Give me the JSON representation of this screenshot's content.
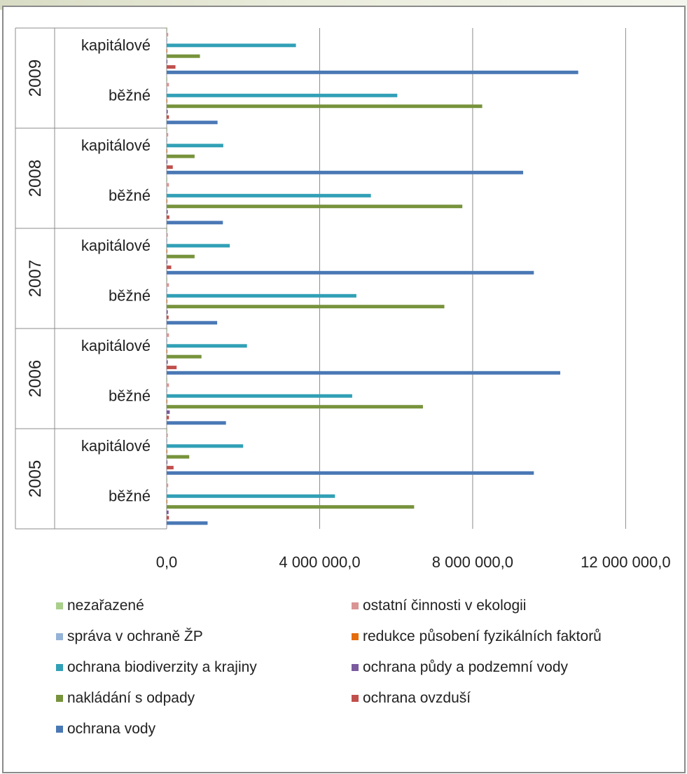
{
  "chart_data": {
    "type": "bar",
    "orientation": "horizontal",
    "groups": [
      {
        "year": "2009",
        "categories": [
          "kapitálové",
          "běžné"
        ]
      },
      {
        "year": "2008",
        "categories": [
          "kapitálové",
          "běžné"
        ]
      },
      {
        "year": "2007",
        "categories": [
          "kapitálové",
          "běžné"
        ]
      },
      {
        "year": "2006",
        "categories": [
          "kapitálové",
          "běžné"
        ]
      },
      {
        "year": "2005",
        "categories": [
          "kapitálové",
          "běžné"
        ]
      }
    ],
    "x_ticks": [
      "0,0",
      "4 000 000,0",
      "8 000 000,0",
      "12 000 000,0"
    ],
    "xlim": [
      0,
      13000000
    ],
    "grid": true,
    "legend_position": "bottom",
    "series": [
      {
        "name": "nezařazené",
        "color": "#a9cf8b",
        "values": [
          20000,
          20000,
          20000,
          20000,
          20000,
          20000,
          20000,
          20000,
          20000,
          20000
        ]
      },
      {
        "name": "ostatní činnosti v ekologii",
        "color": "#d99594",
        "values": [
          40000,
          60000,
          40000,
          60000,
          30000,
          60000,
          60000,
          60000,
          30000,
          40000
        ]
      },
      {
        "name": "správa v ochraně ŽP",
        "color": "#95b3d7",
        "values": [
          20000,
          20000,
          20000,
          20000,
          20000,
          20000,
          20000,
          20000,
          20000,
          20000
        ]
      },
      {
        "name": "redukce působení fyzikálních faktorů",
        "color": "#e46c0a",
        "values": [
          5000,
          5000,
          5000,
          5000,
          5000,
          5000,
          5000,
          5000,
          5000,
          5000
        ]
      },
      {
        "name": "ochrana biodiverzity a krajiny",
        "color": "#31a0b6",
        "values": [
          3380000,
          6030000,
          1480000,
          5340000,
          1650000,
          4960000,
          2100000,
          4850000,
          2000000,
          4400000
        ]
      },
      {
        "name": "ochrana půdy a podzemní vody",
        "color": "#7b5a9e",
        "values": [
          20000,
          30000,
          20000,
          30000,
          20000,
          30000,
          30000,
          80000,
          20000,
          50000
        ]
      },
      {
        "name": "nakládání s odpady",
        "color": "#77933c",
        "values": [
          870000,
          8250000,
          730000,
          7730000,
          730000,
          7260000,
          910000,
          6700000,
          590000,
          6470000
        ]
      },
      {
        "name": "ochrana ovzduší",
        "color": "#c0504d",
        "values": [
          230000,
          60000,
          160000,
          70000,
          120000,
          50000,
          260000,
          60000,
          180000,
          60000
        ]
      },
      {
        "name": "ochrana vody",
        "color": "#4a78b5",
        "values": [
          10760000,
          1330000,
          9320000,
          1470000,
          9600000,
          1320000,
          10290000,
          1550000,
          9600000,
          1070000
        ]
      }
    ]
  }
}
